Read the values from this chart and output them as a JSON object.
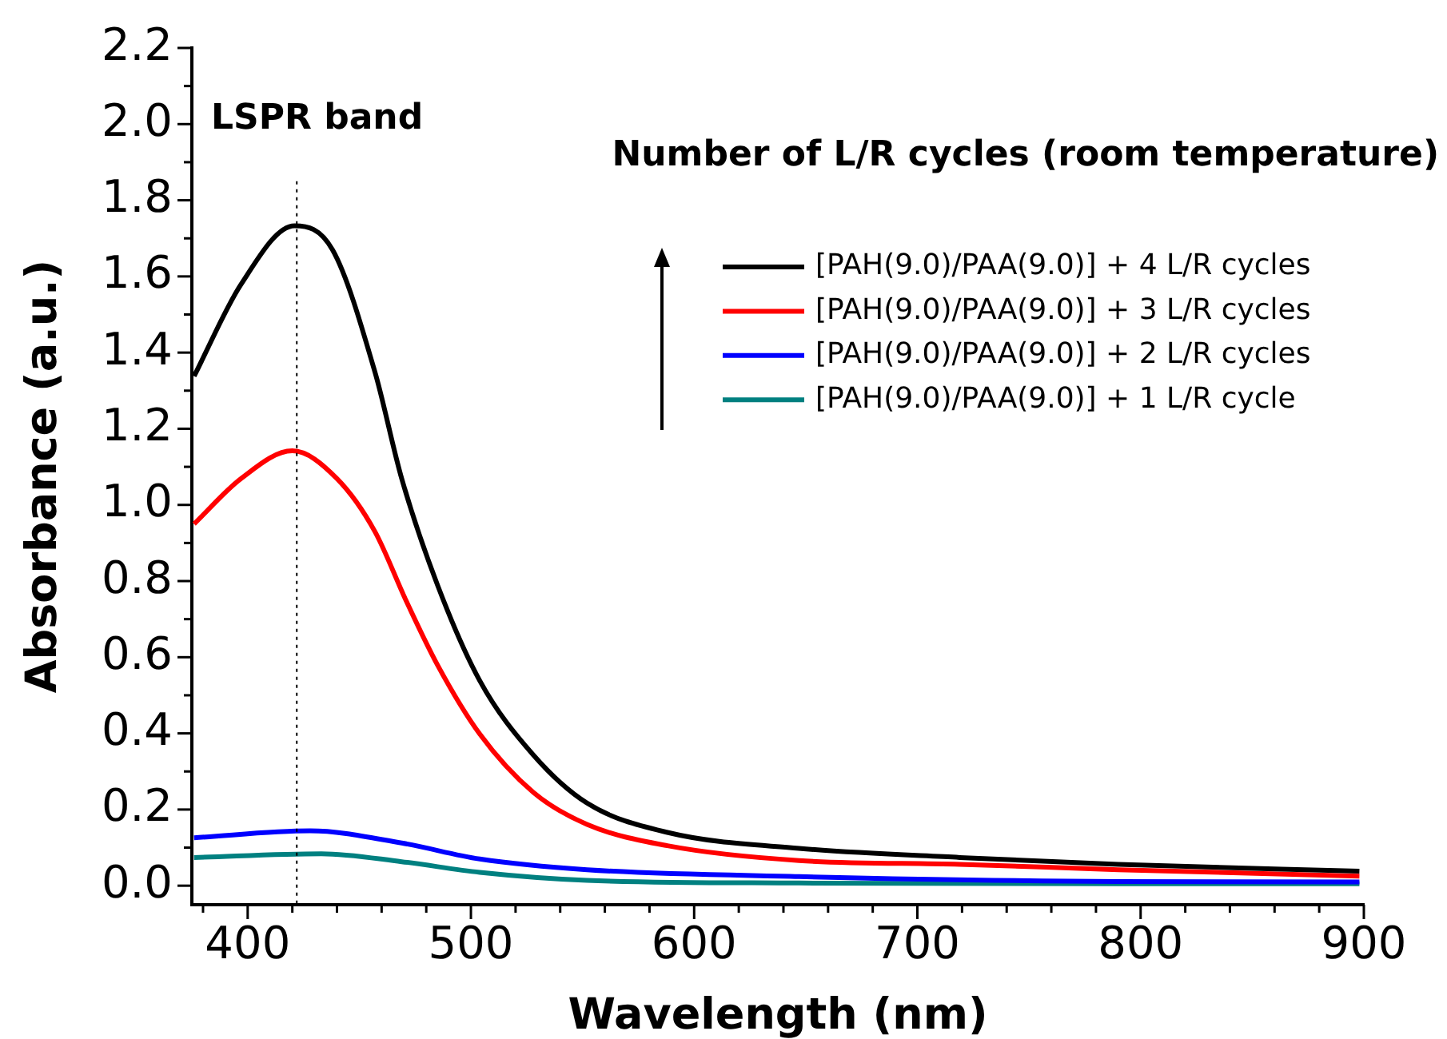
{
  "chart_data": {
    "type": "line",
    "xlabel": "Wavelength (nm)",
    "ylabel": "Absorbance (a.u.)",
    "legend_title": "Number of L/R cycles (room temperature)",
    "legend": "top right",
    "grid": false,
    "marker": "none",
    "line_style": "solid",
    "xlim": [
      375,
      900
    ],
    "ylim": [
      -0.05,
      2.2
    ],
    "xticks": [
      {
        "value": 380,
        "label": null
      },
      400,
      {
        "value": 420,
        "label": null
      },
      {
        "value": 440,
        "label": null
      },
      {
        "value": 460,
        "label": null
      },
      {
        "value": 480,
        "label": null
      },
      500,
      {
        "value": 520,
        "label": null
      },
      {
        "value": 540,
        "label": null
      },
      {
        "value": 560,
        "label": null
      },
      {
        "value": 580,
        "label": null
      },
      600,
      {
        "value": 620,
        "label": null
      },
      {
        "value": 640,
        "label": null
      },
      {
        "value": 660,
        "label": null
      },
      {
        "value": 680,
        "label": null
      },
      700,
      {
        "value": 720,
        "label": null
      },
      {
        "value": 740,
        "label": null
      },
      {
        "value": 760,
        "label": null
      },
      {
        "value": 780,
        "label": null
      },
      800,
      {
        "value": 820,
        "label": null
      },
      {
        "value": 840,
        "label": null
      },
      {
        "value": 860,
        "label": null
      },
      {
        "value": 880,
        "label": null
      },
      900
    ],
    "yticks": [
      {
        "value": 0,
        "label": "0.0"
      },
      {
        "value": 0.1,
        "label": null
      },
      {
        "value": 0.2,
        "label": "0.2"
      },
      {
        "value": 0.3,
        "label": null
      },
      {
        "value": 0.4,
        "label": "0.4"
      },
      {
        "value": 0.5,
        "label": null
      },
      {
        "value": 0.6,
        "label": "0.6"
      },
      {
        "value": 0.7,
        "label": null
      },
      {
        "value": 0.8,
        "label": "0.8"
      },
      {
        "value": 0.9,
        "label": null
      },
      {
        "value": 1.0,
        "label": "1.0"
      },
      {
        "value": 1.1,
        "label": null
      },
      {
        "value": 1.2,
        "label": "1.2"
      },
      {
        "value": 1.3,
        "label": null
      },
      {
        "value": 1.4,
        "label": "1.4"
      },
      {
        "value": 1.5,
        "label": null
      },
      {
        "value": 1.6,
        "label": "1.6"
      },
      {
        "value": 1.7,
        "label": null
      },
      {
        "value": 1.8,
        "label": "1.8"
      },
      {
        "value": 1.9,
        "label": null
      },
      {
        "value": 2.0,
        "label": "2.0"
      },
      {
        "value": 2.1,
        "label": null
      },
      {
        "value": 2.2,
        "label": "2.2"
      }
    ],
    "ref_lines": [
      {
        "axis": "x",
        "value": 422,
        "label": "LSPR band",
        "color": "#000000",
        "line_style": "dotted"
      }
    ],
    "series": [
      {
        "name": "[PAH(9.0)/PAA(9.0)] + 4 L/R cycles",
        "color": "#000000",
        "x": [
          376,
          397,
          421,
          438,
          457,
          469,
          485,
          504,
          528,
          552,
          588,
          647,
          719,
          790,
          898
        ],
        "values": [
          1.338,
          1.579,
          1.733,
          1.67,
          1.349,
          1.069,
          0.79,
          0.538,
          0.343,
          0.217,
          0.14,
          0.098,
          0.074,
          0.056,
          0.038
        ]
      },
      {
        "name": "[PAH(9.0)/PAA(9.0)] + 3 L/R cycles",
        "color": "#ff0000",
        "x": [
          376,
          397,
          420,
          440,
          457,
          471,
          485,
          504,
          528,
          552,
          588,
          647,
          719,
          790,
          898
        ],
        "values": [
          0.95,
          1.069,
          1.142,
          1.069,
          0.93,
          0.748,
          0.58,
          0.398,
          0.245,
          0.161,
          0.105,
          0.066,
          0.056,
          0.042,
          0.025
        ]
      },
      {
        "name": "[PAH(9.0)/PAA(9.0)] + 2 L/R cycles",
        "color": "#0000ff",
        "x": [
          376,
          428,
          469,
          504,
          552,
          647,
          790,
          898
        ],
        "values": [
          0.126,
          0.144,
          0.112,
          0.07,
          0.042,
          0.024,
          0.011,
          0.01
        ]
      },
      {
        "name": "[PAH(9.0)/PAA(9.0)] + 1 L/R cycle",
        "color": "#008080",
        "x": [
          376,
          433,
          469,
          504,
          552,
          647,
          790,
          898
        ],
        "values": [
          0.074,
          0.084,
          0.063,
          0.035,
          0.014,
          0.007,
          0.005,
          0.005
        ]
      }
    ]
  }
}
